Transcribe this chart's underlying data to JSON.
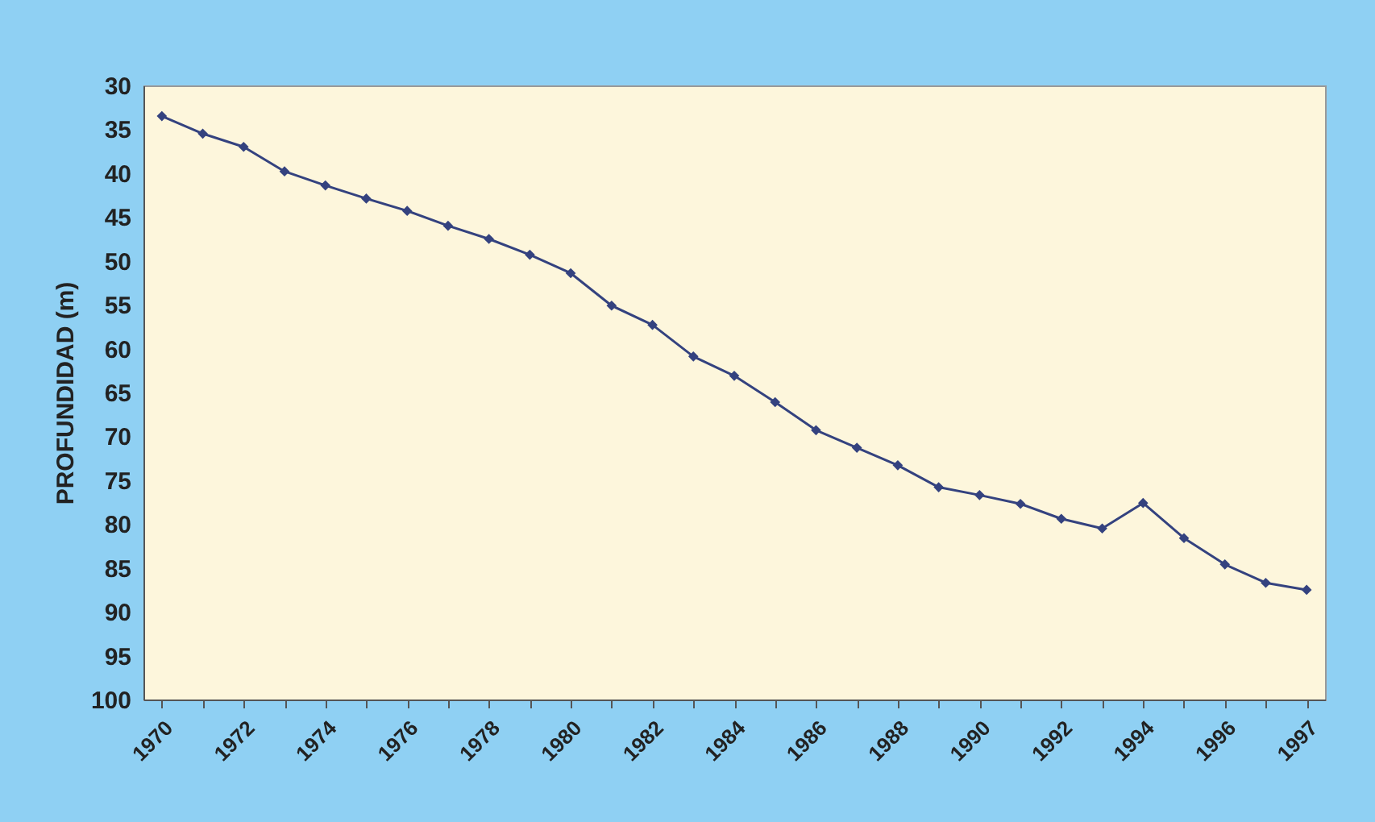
{
  "chart_data": {
    "type": "line",
    "ylabel": "PROFUNDIDAD (m)",
    "categories": [
      "1970",
      null,
      "1972",
      null,
      "1974",
      null,
      "1976",
      null,
      "1978",
      null,
      "1980",
      null,
      "1982",
      null,
      "1984",
      null,
      "1986",
      null,
      "1988",
      null,
      "1990",
      null,
      "1992",
      null,
      "1994",
      null,
      "1996",
      null,
      "1997"
    ],
    "series": [
      {
        "color": "#34427f",
        "values": [
          33.5,
          35.5,
          37.0,
          39.8,
          41.4,
          42.9,
          44.3,
          46.0,
          47.5,
          49.3,
          51.4,
          55.1,
          57.3,
          60.9,
          63.1,
          66.1,
          69.3,
          71.3,
          73.3,
          75.8,
          76.7,
          77.7,
          79.4,
          80.5,
          77.6,
          81.6,
          84.6,
          86.7,
          87.5
        ]
      }
    ],
    "ylim": [
      100,
      30
    ],
    "yticks": [
      30,
      35,
      40,
      45,
      50,
      55,
      60,
      65,
      70,
      75,
      80,
      85,
      90,
      95,
      100
    ],
    "grid": false,
    "marker": "diamond",
    "line_style": "solid"
  }
}
